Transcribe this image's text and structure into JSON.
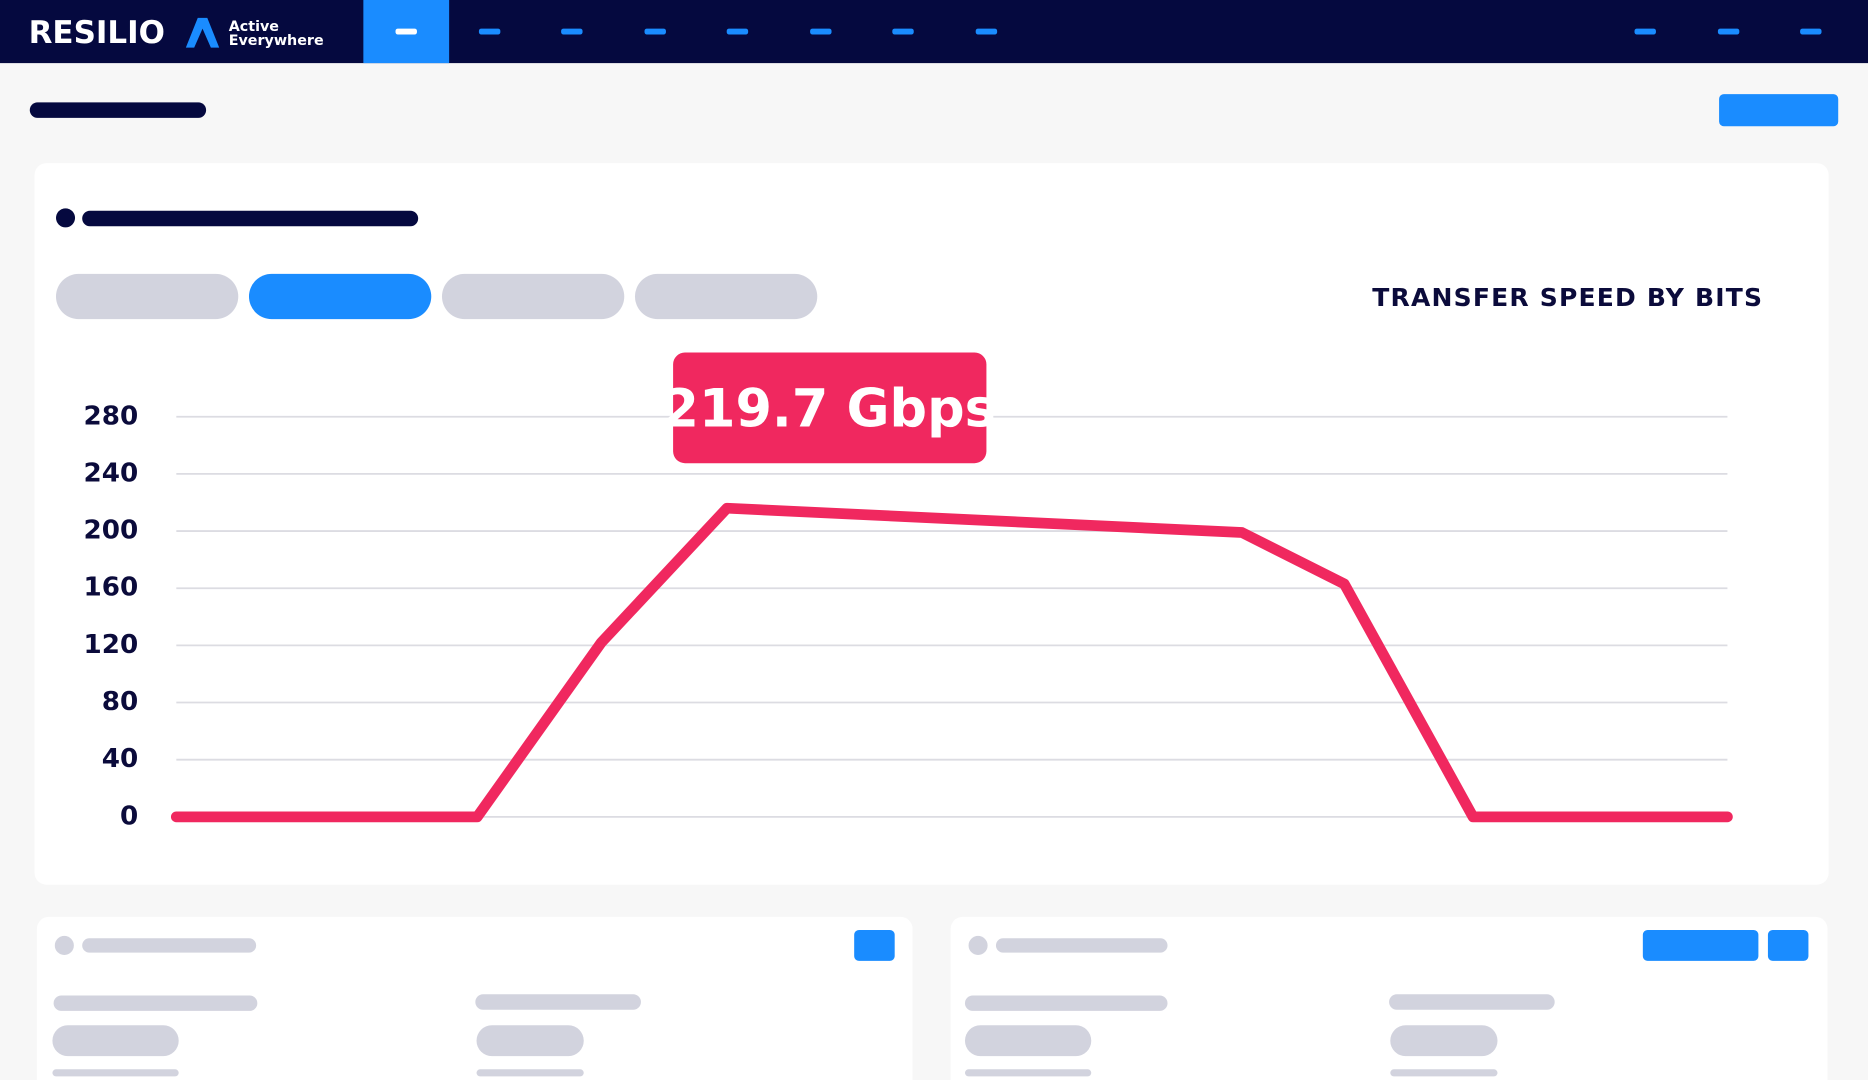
{
  "header": {
    "logo": "RESILIO",
    "tagline_line1": "Active",
    "tagline_line2": "Everywhere"
  },
  "chart_data": {
    "type": "line",
    "title": "TRANSFER SPEED BY BITS",
    "annotation": "219.7 Gbps",
    "x": [
      0,
      19.4,
      27.4,
      35.5,
      68.7,
      75.3,
      83.6,
      100
    ],
    "xlim": [
      0,
      100
    ],
    "values": [
      0,
      0,
      122,
      216,
      199,
      163,
      0,
      0
    ],
    "color": "#f0285f",
    "ylim": [
      0,
      280
    ],
    "yticks": [
      0,
      40,
      80,
      120,
      160,
      200,
      240,
      280
    ],
    "grid": true
  }
}
